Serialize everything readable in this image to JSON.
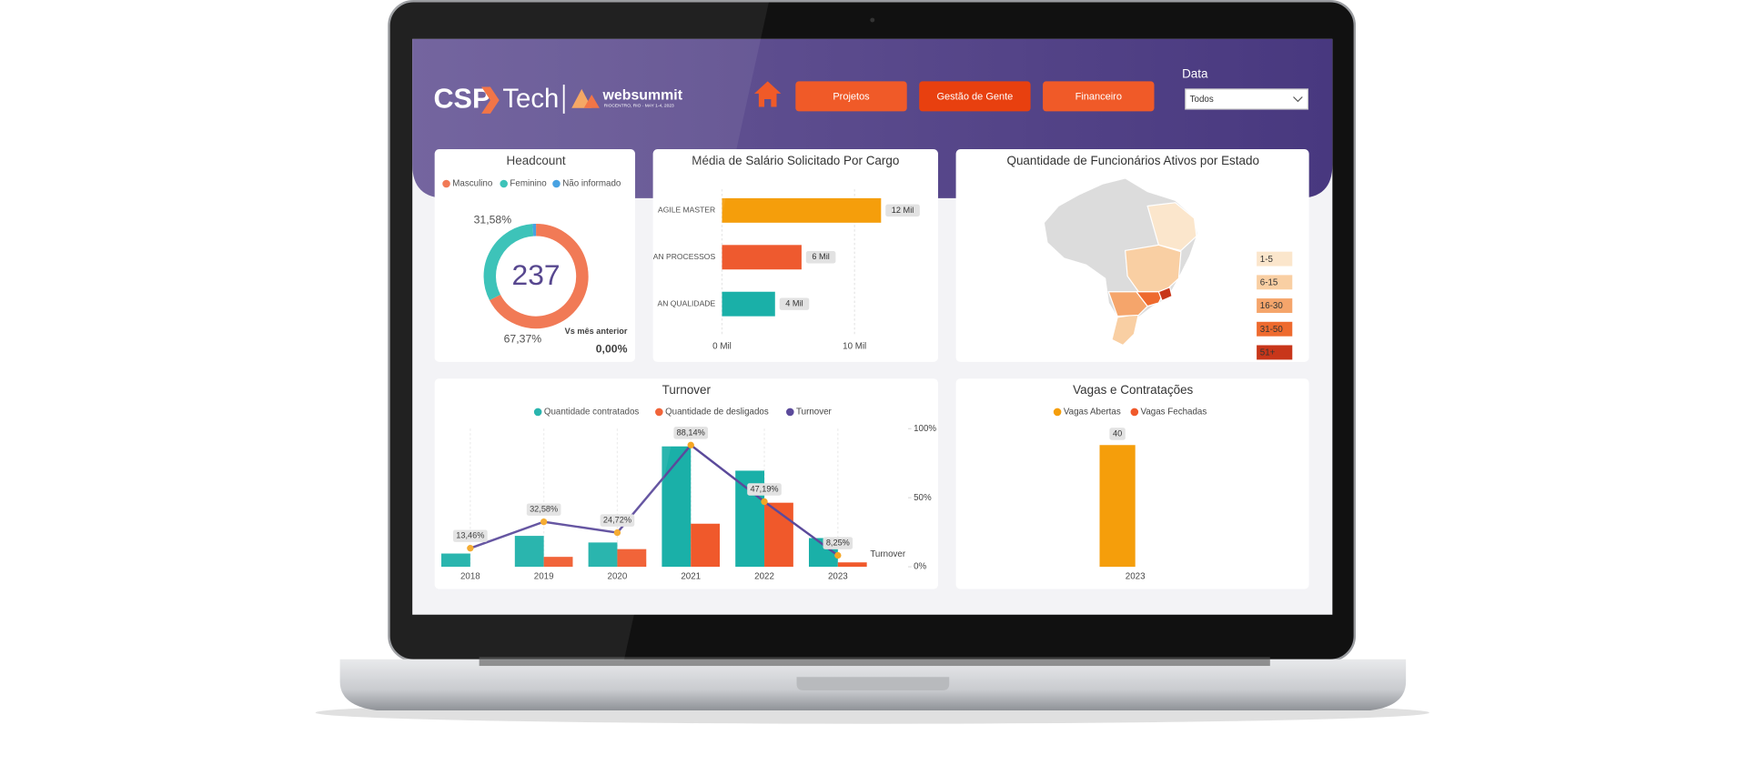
{
  "header": {
    "logo": {
      "csp": "CSP",
      "tech": "Tech",
      "event": "websummit",
      "event_detail": "RIOCENTRO, RIO · MAY 1-4, 2023"
    },
    "nav": [
      "Projetos",
      "Gestão de Gente",
      "Financeiro"
    ],
    "filter": {
      "label": "Data",
      "value": "Todos"
    }
  },
  "chart_data": [
    {
      "type": "donut",
      "title": "Headcount",
      "categories": [
        "Masculino",
        "Feminino",
        "Não informado"
      ],
      "colors": [
        "#f0704a",
        "#2fbfb4",
        "#3b9be0"
      ],
      "values": [
        67.37,
        31.58,
        1.05
      ],
      "value_labels": [
        "67,37%",
        "31,58%",
        null
      ],
      "total": 237,
      "comparison": {
        "label": "Vs mês anterior",
        "value": 0,
        "value_label": "0,00%"
      }
    },
    {
      "type": "hbar",
      "title": "Média de Salário Solicitado Por Cargo",
      "categories": [
        "AGILE MASTER",
        "AN PROCESSOS",
        "AN QUALIDADE"
      ],
      "values": [
        12000,
        6000,
        4000
      ],
      "value_labels": [
        "12 Mil",
        "6 Mil",
        "4 Mil"
      ],
      "colors": [
        "#f59e0b",
        "#ee5a2f",
        "#1ab0a8"
      ],
      "xlim": [
        0,
        15000
      ],
      "xticks": [
        {
          "value": 0,
          "label": "0 Mil"
        },
        {
          "value": 10000,
          "label": "10 Mil"
        }
      ]
    },
    {
      "type": "choropleth",
      "title": "Quantidade de Funcionários Ativos por Estado",
      "legend": {
        "labels": [
          "1-5",
          "6-15",
          "16-30",
          "31-50",
          "51+"
        ],
        "colors": [
          "#fbe6cc",
          "#f9cfa3",
          "#f5a56b",
          "#ee6a2e",
          "#c8361a"
        ]
      }
    },
    {
      "type": "combo",
      "title": "Turnover",
      "categories": [
        "2018",
        "2019",
        "2020",
        "2021",
        "2022",
        "2023"
      ],
      "series": [
        {
          "name": "Quantidade contratados",
          "color": "#1ab0a8",
          "values": [
            12,
            28,
            22,
            109,
            87,
            26
          ]
        },
        {
          "name": "Quantidade de desligados",
          "color": "#f0592b",
          "values": [
            0,
            9,
            16,
            39,
            58,
            4
          ]
        },
        {
          "name": "Turnover",
          "color": "#5b4a9b",
          "axis": "y2",
          "marker_color": "#f5a623",
          "values": [
            13.46,
            32.58,
            24.72,
            88.14,
            47.19,
            8.25
          ],
          "value_labels": [
            "13,46%",
            "32,58%",
            "24,72%",
            "88,14%",
            "47,19%",
            "8,25%"
          ]
        }
      ],
      "ylim": [
        0,
        125
      ],
      "y2lim": [
        0,
        100
      ],
      "y2ticks": [
        {
          "value": 0,
          "label": "0%"
        },
        {
          "value": 50,
          "label": "50%"
        },
        {
          "value": 100,
          "label": "100%"
        }
      ],
      "y2_label": "Turnover"
    },
    {
      "type": "bar",
      "title": "Vagas e Contratações",
      "categories": [
        "2023"
      ],
      "series": [
        {
          "name": "Vagas Abertas",
          "color": "#f59e0b",
          "values": [
            40
          ]
        },
        {
          "name": "Vagas Fechadas",
          "color": "#f0592b",
          "values": [
            0
          ]
        }
      ],
      "ylim": [
        0,
        45
      ]
    }
  ]
}
